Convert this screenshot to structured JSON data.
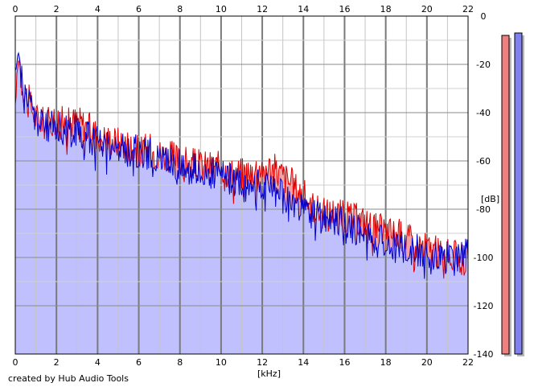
{
  "chart_data": {
    "type": "area",
    "title": "",
    "xlabel": "[kHz]",
    "ylabel": "[dB]",
    "xlim": [
      0,
      22
    ],
    "ylim": [
      -140,
      0
    ],
    "x_ticks": [
      "0",
      "2",
      "4",
      "6",
      "8",
      "10",
      "12",
      "14",
      "16",
      "18",
      "20",
      "22"
    ],
    "y_ticks": [
      "0",
      "-20",
      "-40",
      "-60",
      "-80",
      "-100",
      "-120",
      "-140"
    ],
    "grid": true,
    "series": [
      {
        "color": "#e00000",
        "fill": "#f4a0a0",
        "x": [
          0,
          0.1,
          0.2,
          0.3,
          0.5,
          0.8,
          1.0,
          1.5,
          2.0,
          2.5,
          3.0,
          3.5,
          4.0,
          4.5,
          5.0,
          5.5,
          6.0,
          6.5,
          7.0,
          7.5,
          8.0,
          8.5,
          9.0,
          9.5,
          10.0,
          10.5,
          11.0,
          11.5,
          12.0,
          12.5,
          13.0,
          13.5,
          14.0,
          14.5,
          15.0,
          15.5,
          16.0,
          16.5,
          17.0,
          17.5,
          18.0,
          18.5,
          19.0,
          19.5,
          20.0,
          20.5,
          21.0,
          21.5,
          22.0
        ],
        "values": [
          -38,
          -22,
          -17,
          -27,
          -32,
          -38,
          -42,
          -45,
          -42,
          -45,
          -43,
          -46,
          -49,
          -51,
          -52,
          -53,
          -56,
          -55,
          -57,
          -58,
          -60,
          -61,
          -62,
          -62,
          -63,
          -65,
          -65,
          -64,
          -62,
          -63,
          -66,
          -70,
          -74,
          -79,
          -82,
          -81,
          -83,
          -84,
          -85,
          -88,
          -89,
          -90,
          -92,
          -94,
          -96,
          -98,
          -99,
          -100,
          -101
        ]
      },
      {
        "color": "#0000cc",
        "fill": "#c0c0ff",
        "x": [
          0,
          0.1,
          0.2,
          0.3,
          0.5,
          0.8,
          1.0,
          1.5,
          2.0,
          2.5,
          3.0,
          3.5,
          4.0,
          4.5,
          5.0,
          5.5,
          6.0,
          6.5,
          7.0,
          7.5,
          8.0,
          8.5,
          9.0,
          9.5,
          10.0,
          10.5,
          11.0,
          11.5,
          12.0,
          12.5,
          13.0,
          13.5,
          14.0,
          14.5,
          15.0,
          15.5,
          16.0,
          16.5,
          17.0,
          17.5,
          18.0,
          18.5,
          19.0,
          19.5,
          20.0,
          20.5,
          21.0,
          21.5,
          22.0
        ],
        "values": [
          -24,
          -18,
          -15,
          -25,
          -33,
          -38,
          -43,
          -46,
          -45,
          -48,
          -47,
          -50,
          -52,
          -53,
          -55,
          -56,
          -56,
          -57,
          -59,
          -60,
          -62,
          -63,
          -64,
          -65,
          -66,
          -68,
          -70,
          -71,
          -70,
          -72,
          -74,
          -78,
          -80,
          -82,
          -84,
          -84,
          -86,
          -88,
          -90,
          -93,
          -94,
          -96,
          -96,
          -97,
          -98,
          -100,
          -100,
          -101,
          -98
        ]
      }
    ],
    "level_meters": [
      {
        "color": "#f08080",
        "value": -8
      },
      {
        "color": "#8080f0",
        "value": -7
      }
    ]
  },
  "footer": {
    "credit": "created by Hub Audio Tools"
  }
}
